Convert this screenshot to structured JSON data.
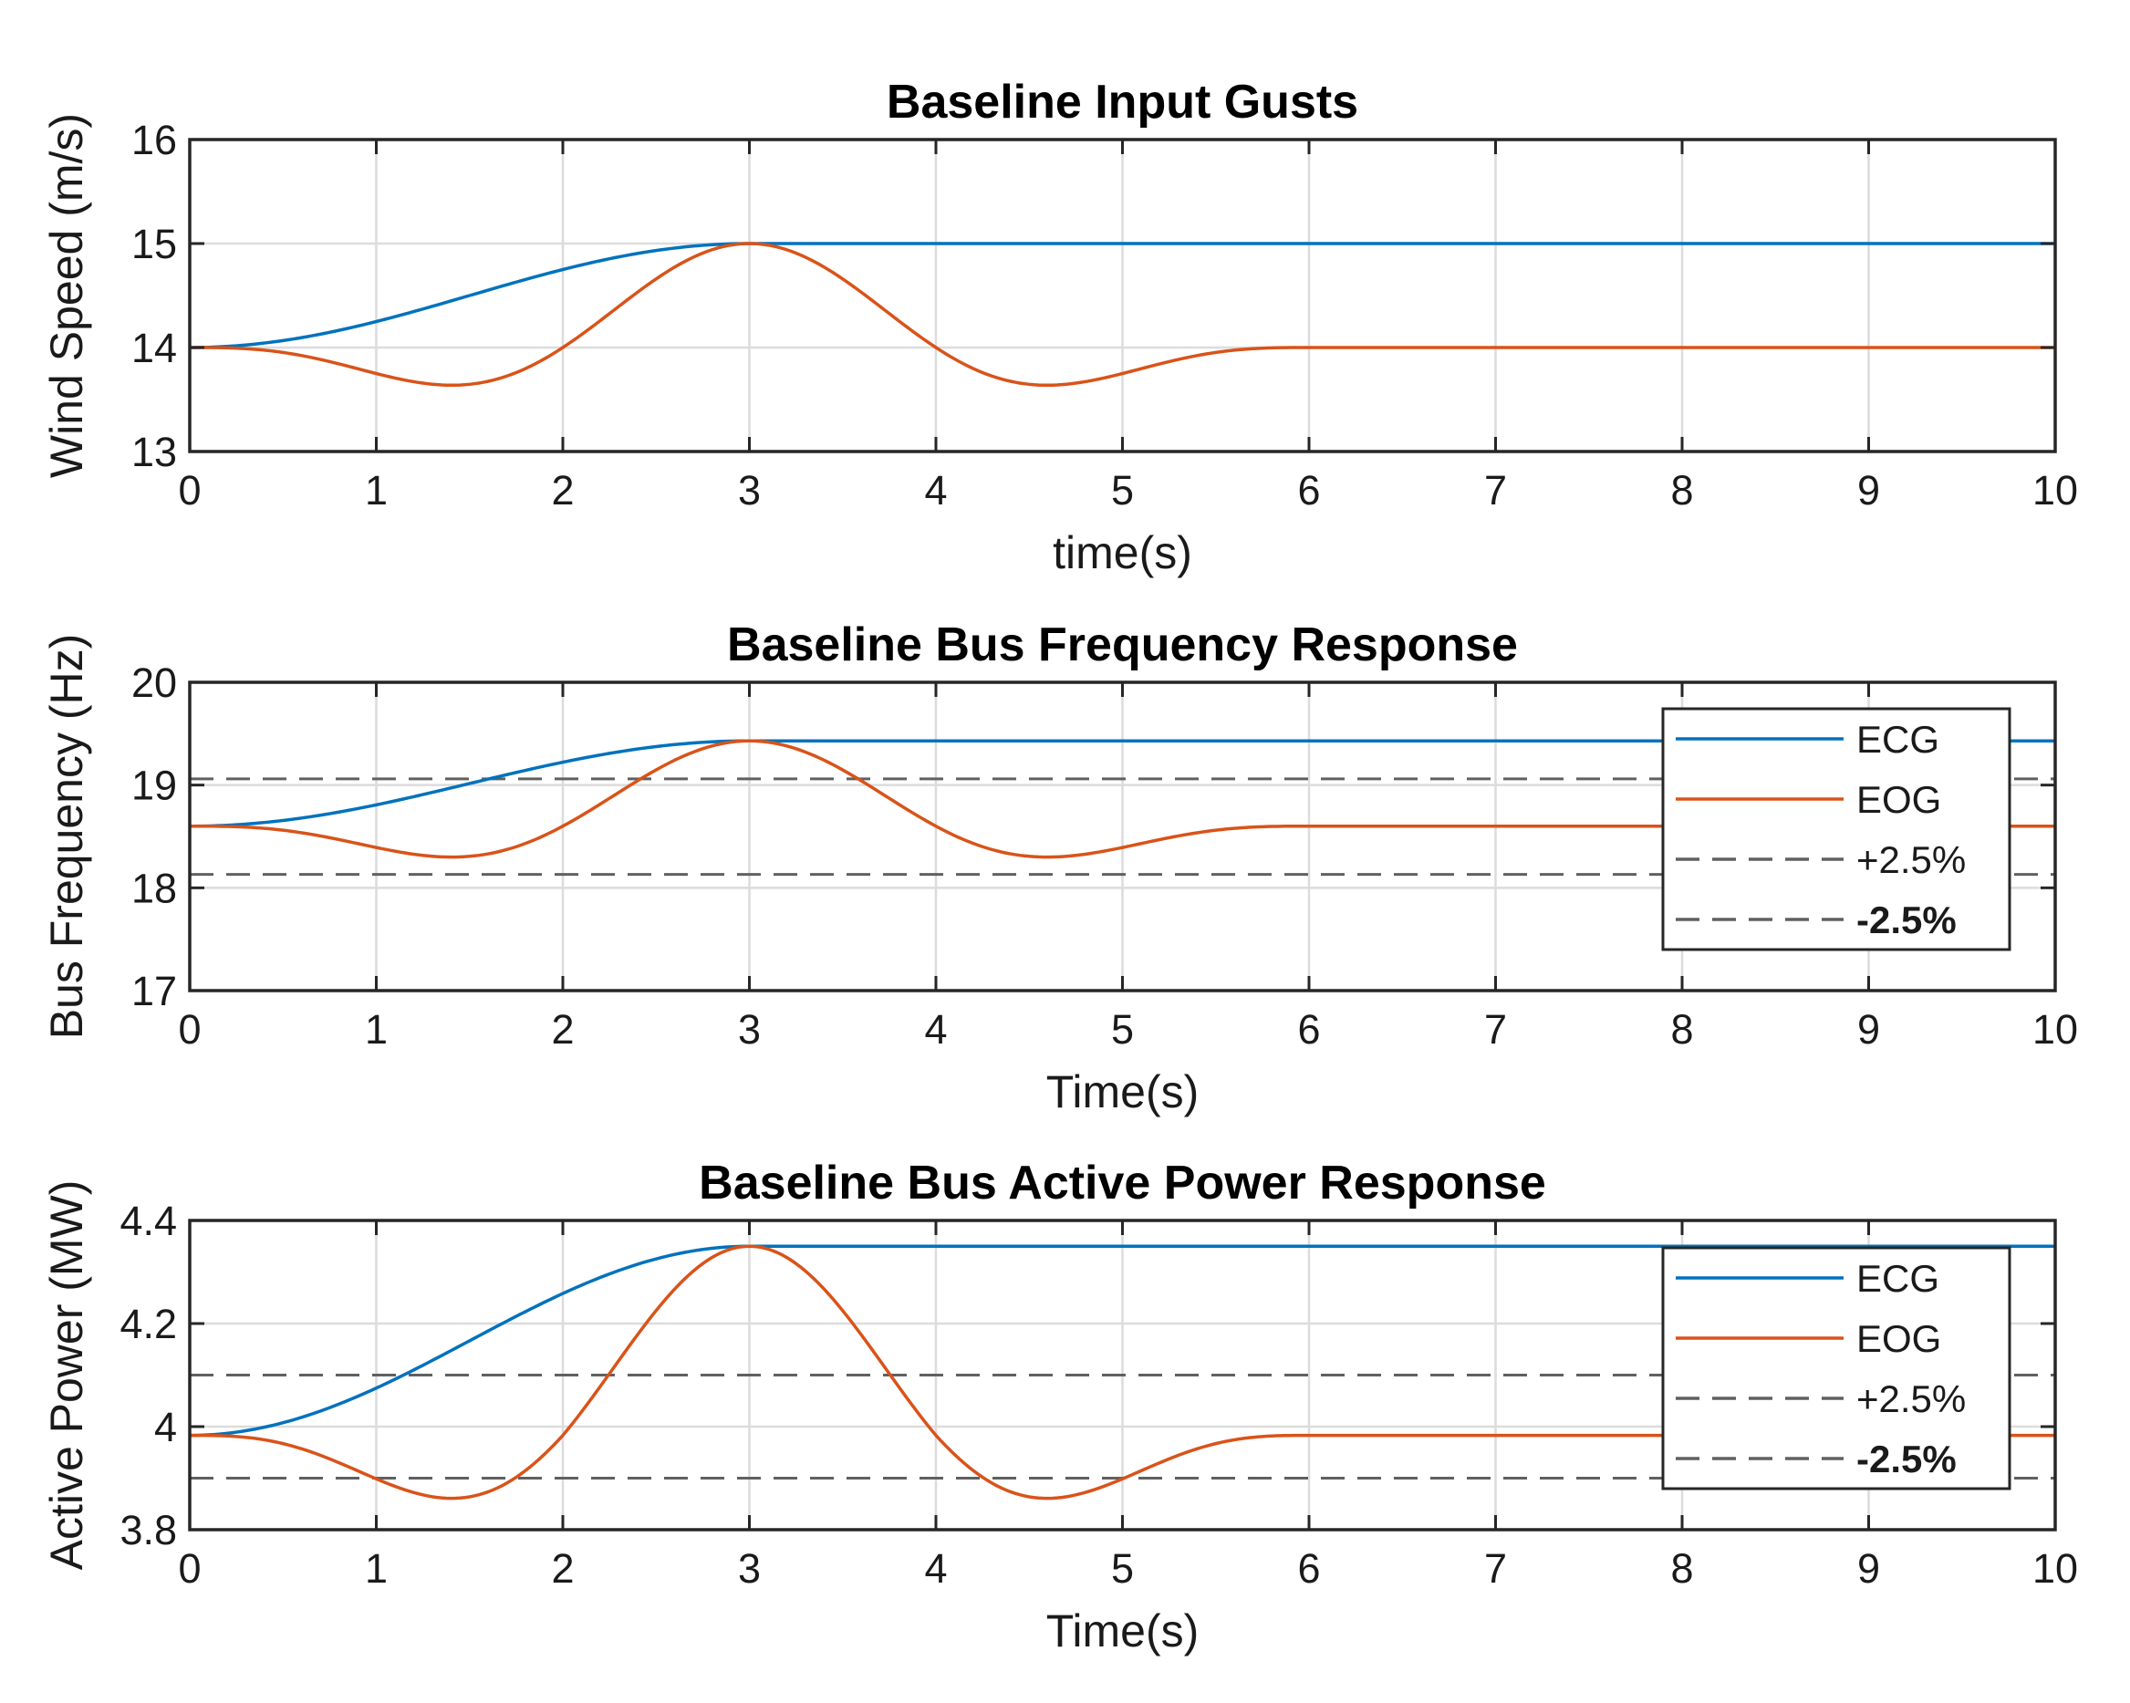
{
  "chart_data": [
    {
      "type": "line",
      "title": "Baseline Input Gusts",
      "xlabel": "time(s)",
      "ylabel": "Wind Speed (m/s)",
      "xlim": [
        0,
        10
      ],
      "ylim": [
        13,
        16
      ],
      "xticks": [
        "0",
        "1",
        "2",
        "3",
        "4",
        "5",
        "6",
        "7",
        "8",
        "9",
        "10"
      ],
      "yticks": [
        "13",
        "14",
        "15",
        "16"
      ],
      "ytick_values": [
        13,
        14,
        15,
        16
      ],
      "grid": true,
      "legend": null,
      "series": [
        {
          "name": "ECG",
          "color": "#0072BD",
          "shape": "ecg",
          "base": 14,
          "amplitude": 1,
          "rise_end": 3
        },
        {
          "name": "EOG",
          "color": "#D95319",
          "shape": "eog",
          "base": 14,
          "amplitude": 1,
          "dip": 0.37,
          "period": 6,
          "peak_time": 3
        }
      ],
      "reference_lines": []
    },
    {
      "type": "line",
      "title": "Baseline Bus Frequency Response",
      "xlabel": "Time(s)",
      "ylabel": "Bus Frequency (Hz)",
      "xlim": [
        0,
        10
      ],
      "ylim": [
        17,
        20
      ],
      "xticks": [
        "0",
        "1",
        "2",
        "3",
        "4",
        "5",
        "6",
        "7",
        "8",
        "9",
        "10"
      ],
      "yticks": [
        "17",
        "18",
        "19",
        "20"
      ],
      "ytick_values": [
        17,
        18,
        19,
        20
      ],
      "grid": true,
      "legend": {
        "position": "right",
        "entries": [
          {
            "label": "ECG",
            "color": "#0072BD",
            "style": "solid",
            "bold": false
          },
          {
            "label": "EOG",
            "color": "#D95319",
            "style": "solid",
            "bold": false
          },
          {
            "label": "+2.5%",
            "color": "#606060",
            "style": "dashed",
            "bold": false
          },
          {
            "label": "-2.5%",
            "color": "#606060",
            "style": "dashed",
            "bold": true
          }
        ]
      },
      "series": [
        {
          "name": "ECG",
          "color": "#0072BD",
          "shape": "ecg",
          "base": 18.6,
          "amplitude": 0.83,
          "rise_end": 3
        },
        {
          "name": "EOG",
          "color": "#D95319",
          "shape": "eog",
          "base": 18.6,
          "amplitude": 0.83,
          "dip": 0.37,
          "period": 6,
          "peak_time": 3
        }
      ],
      "reference_lines": [
        {
          "name": "+2.5%",
          "y": 19.06,
          "color": "#606060",
          "style": "dashed"
        },
        {
          "name": "-2.5%",
          "y": 18.13,
          "color": "#606060",
          "style": "dashed"
        }
      ]
    },
    {
      "type": "line",
      "title": "Baseline Bus Active Power Response",
      "xlabel": "Time(s)",
      "ylabel": "Active Power (MW)",
      "xlim": [
        0,
        10
      ],
      "ylim": [
        3.8,
        4.4
      ],
      "xticks": [
        "0",
        "1",
        "2",
        "3",
        "4",
        "5",
        "6",
        "7",
        "8",
        "9",
        "10"
      ],
      "yticks": [
        "3.8",
        "4",
        "4.2",
        "4.4"
      ],
      "ytick_values": [
        3.8,
        4.0,
        4.2,
        4.4
      ],
      "grid": true,
      "legend": {
        "position": "right",
        "entries": [
          {
            "label": "ECG",
            "color": "#0072BD",
            "style": "solid",
            "bold": false
          },
          {
            "label": "EOG",
            "color": "#D95319",
            "style": "solid",
            "bold": false
          },
          {
            "label": "+2.5%",
            "color": "#606060",
            "style": "dashed",
            "bold": false
          },
          {
            "label": "-2.5%",
            "color": "#606060",
            "style": "dashed",
            "bold": true
          }
        ]
      },
      "series": [
        {
          "name": "ECG",
          "color": "#0072BD",
          "shape": "ecg",
          "base": 3.983,
          "amplitude": 0.367,
          "rise_end": 3
        },
        {
          "name": "EOG",
          "color": "#D95319",
          "shape": "eog",
          "base": 3.983,
          "amplitude": 0.367,
          "dip": 0.34,
          "period": 6,
          "peak_time": 3
        }
      ],
      "reference_lines": [
        {
          "name": "+2.5%",
          "y": 4.1,
          "color": "#606060",
          "style": "dashed"
        },
        {
          "name": "-2.5%",
          "y": 3.9,
          "color": "#606060",
          "style": "dashed"
        }
      ]
    }
  ]
}
